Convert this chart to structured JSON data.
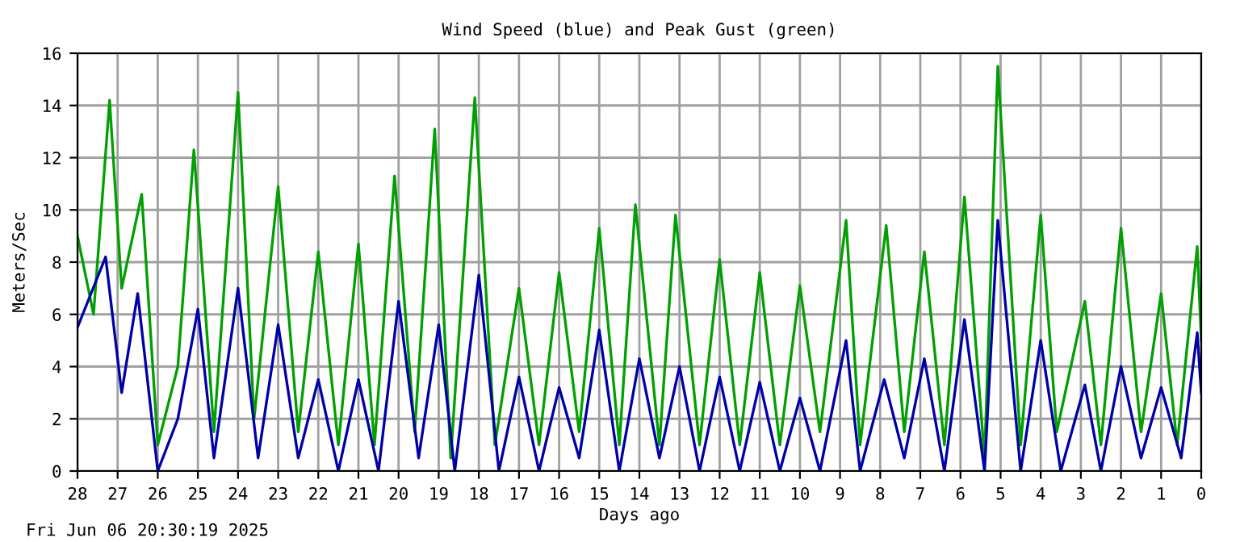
{
  "chart_data": {
    "type": "line",
    "title": "Wind Speed (blue) and Peak Gust (green)",
    "xlabel": "Days ago",
    "ylabel": "Meters/Sec",
    "annotations": [
      "Fri Jun 06 20:30:19 2025"
    ],
    "xlim": [
      28,
      0
    ],
    "xticks": [
      28,
      27,
      26,
      25,
      24,
      23,
      22,
      21,
      20,
      19,
      18,
      17,
      16,
      15,
      14,
      13,
      12,
      11,
      10,
      9,
      8,
      7,
      6,
      5,
      4,
      3,
      2,
      1,
      0
    ],
    "ylim": [
      0,
      16
    ],
    "yticks": [
      0,
      2,
      4,
      6,
      8,
      10,
      12,
      14,
      16
    ],
    "grid": true,
    "series": [
      {
        "color": "#00a000",
        "x": [
          28,
          27.6,
          27.2,
          26.9,
          26.4,
          26,
          25.5,
          25.1,
          24.6,
          24.0,
          23.6,
          23.0,
          22.5,
          22.0,
          21.5,
          21.0,
          20.6,
          20.1,
          19.6,
          19.1,
          18.7,
          18.1,
          17.6,
          17.0,
          16.5,
          16.0,
          15.5,
          15.0,
          14.5,
          14.1,
          13.5,
          13.1,
          12.5,
          12.0,
          11.5,
          11.0,
          10.5,
          10.0,
          9.5,
          8.85,
          8.5,
          7.85,
          7.4,
          6.9,
          6.4,
          5.9,
          5.4,
          5.07,
          4.5,
          4.0,
          3.6,
          2.9,
          2.5,
          2.0,
          1.5,
          1.0,
          0.6,
          0.1,
          0
        ],
        "values": [
          9,
          6,
          14.2,
          7,
          10.6,
          1,
          4,
          12.3,
          1.5,
          14.5,
          2,
          10.9,
          1.5,
          8.4,
          1,
          8.7,
          1,
          11.3,
          1.5,
          13.1,
          0.5,
          14.3,
          1,
          7,
          1,
          7.6,
          1.5,
          9.3,
          1,
          10.2,
          1,
          9.8,
          1,
          8.1,
          1,
          7.6,
          1,
          7.1,
          1.5,
          9.6,
          1,
          9.4,
          1.5,
          8.4,
          1,
          10.5,
          0.5,
          15.5,
          1,
          9.8,
          1.5,
          6.5,
          1,
          9.3,
          1.5,
          6.8,
          1,
          8.6,
          5
        ]
      },
      {
        "color": "#0000a8",
        "x": [
          28,
          27.3,
          26.9,
          26.5,
          26,
          25.5,
          25,
          24.6,
          24,
          23.5,
          23,
          22.5,
          22,
          21.5,
          21,
          20.5,
          20,
          19.5,
          19,
          18.6,
          18,
          17.5,
          17,
          16.5,
          16,
          15.5,
          15,
          14.5,
          14,
          13.5,
          13,
          12.5,
          12,
          11.5,
          11,
          10.5,
          10,
          9.5,
          8.85,
          8.5,
          7.9,
          7.4,
          6.9,
          6.4,
          5.9,
          5.4,
          5.07,
          4.5,
          4,
          3.5,
          2.9,
          2.5,
          2,
          1.5,
          1,
          0.5,
          0.1,
          0
        ],
        "values": [
          5.5,
          8.2,
          3,
          6.8,
          0,
          2,
          6.2,
          0.5,
          7,
          0.5,
          5.6,
          0.5,
          3.5,
          0,
          3.5,
          0,
          6.5,
          0.5,
          5.6,
          0,
          7.5,
          0,
          3.6,
          0,
          3.2,
          0.5,
          5.4,
          0,
          4.3,
          0.5,
          4,
          0,
          3.6,
          0,
          3.4,
          0,
          2.8,
          0,
          5,
          0,
          3.5,
          0.5,
          4.3,
          0,
          5.8,
          0,
          9.6,
          0,
          5,
          0,
          3.3,
          0,
          4,
          0.5,
          3.2,
          0.5,
          5.3,
          3
        ]
      }
    ]
  }
}
